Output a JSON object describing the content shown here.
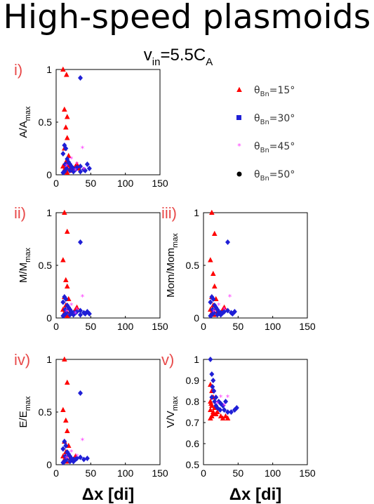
{
  "page": {
    "title": "High-speed plasmoids",
    "condition": {
      "var": "v",
      "var_sub": "in",
      "eq": "=5.5C",
      "const_sub": "A"
    }
  },
  "colors": {
    "theta15": "#ff0000",
    "theta30": "#1f1fd6",
    "theta45": "#ff33ff",
    "theta50": "#000000",
    "panel_label": "#e84a4a"
  },
  "legend": {
    "placement": "right of panel i",
    "items": [
      {
        "key": "theta15",
        "marker": "triangle",
        "sym": "θ",
        "sub": "Bn",
        "rest": "=15°"
      },
      {
        "key": "theta30",
        "marker": "square",
        "sym": "θ",
        "sub": "Bn",
        "rest": "=30°"
      },
      {
        "key": "theta45",
        "marker": "star",
        "sym": "θ",
        "sub": "Bn",
        "rest": "=45°"
      },
      {
        "key": "theta50",
        "marker": "circle",
        "sym": "θ",
        "sub": "Bn",
        "rest": "=50°"
      }
    ]
  },
  "chart_data": [
    {
      "id": "i",
      "label": "i)",
      "type": "scatter",
      "ylabel_main": "A/A",
      "ylabel_sub": "max",
      "xlabel": "",
      "xlim": [
        0,
        150
      ],
      "ylim": [
        0,
        1
      ],
      "xticks": [
        0,
        50,
        100,
        150
      ],
      "yticks": [
        0,
        0.5,
        1
      ],
      "ytick_labels": [
        "0",
        "0.5",
        "1"
      ],
      "series": [
        {
          "key": "theta15",
          "points": [
            [
              10,
              1.0
            ],
            [
              15,
              0.95
            ],
            [
              12,
              0.62
            ],
            [
              16,
              0.55
            ],
            [
              14,
              0.45
            ],
            [
              16,
              0.35
            ],
            [
              12,
              0.25
            ],
            [
              18,
              0.18
            ],
            [
              14,
              0.12
            ],
            [
              10,
              0.08
            ],
            [
              20,
              0.06
            ],
            [
              25,
              0.05
            ],
            [
              12,
              0.05
            ],
            [
              15,
              0.03
            ],
            [
              22,
              0.04
            ],
            [
              30,
              0.1
            ],
            [
              18,
              0.09
            ],
            [
              28,
              0.08
            ],
            [
              33,
              0.06
            ],
            [
              16,
              0.02
            ]
          ]
        },
        {
          "key": "theta30",
          "points": [
            [
              35,
              0.92
            ],
            [
              12,
              0.28
            ],
            [
              14,
              0.25
            ],
            [
              10,
              0.2
            ],
            [
              16,
              0.15
            ],
            [
              18,
              0.12
            ],
            [
              13,
              0.1
            ],
            [
              20,
              0.1
            ],
            [
              22,
              0.08
            ],
            [
              25,
              0.06
            ],
            [
              28,
              0.05
            ],
            [
              30,
              0.07
            ],
            [
              35,
              0.08
            ],
            [
              40,
              0.05
            ],
            [
              45,
              0.1
            ],
            [
              48,
              0.06
            ],
            [
              15,
              0.06
            ],
            [
              20,
              0.04
            ],
            [
              12,
              0.03
            ],
            [
              25,
              0.03
            ],
            [
              10,
              0.02
            ],
            [
              35,
              0.03
            ],
            [
              42,
              0.04
            ]
          ]
        },
        {
          "key": "theta45",
          "points": [
            [
              38,
              0.25
            ],
            [
              22,
              0.15
            ],
            [
              30,
              0.1
            ],
            [
              15,
              0.08
            ],
            [
              28,
              0.04
            ],
            [
              40,
              0.05
            ]
          ]
        }
      ]
    },
    {
      "id": "ii",
      "label": "ii)",
      "type": "scatter",
      "ylabel_main": "M/M",
      "ylabel_sub": "max",
      "xlabel": "",
      "xlim": [
        0,
        150
      ],
      "ylim": [
        0,
        1
      ],
      "xticks": [
        0,
        50,
        100,
        150
      ],
      "yticks": [
        0,
        0.5,
        1
      ],
      "ytick_labels": [
        "0",
        "0.5",
        "1"
      ],
      "series": [
        {
          "key": "theta15",
          "points": [
            [
              12,
              1.0
            ],
            [
              16,
              0.82
            ],
            [
              10,
              0.55
            ],
            [
              14,
              0.36
            ],
            [
              16,
              0.3
            ],
            [
              12,
              0.2
            ],
            [
              18,
              0.18
            ],
            [
              14,
              0.12
            ],
            [
              10,
              0.08
            ],
            [
              20,
              0.06
            ],
            [
              25,
              0.05
            ],
            [
              12,
              0.05
            ],
            [
              15,
              0.03
            ],
            [
              22,
              0.04
            ],
            [
              30,
              0.1
            ],
            [
              18,
              0.09
            ],
            [
              28,
              0.08
            ],
            [
              16,
              0.02
            ]
          ]
        },
        {
          "key": "theta30",
          "points": [
            [
              35,
              0.72
            ],
            [
              12,
              0.2
            ],
            [
              14,
              0.18
            ],
            [
              10,
              0.15
            ],
            [
              16,
              0.12
            ],
            [
              18,
              0.1
            ],
            [
              13,
              0.08
            ],
            [
              20,
              0.08
            ],
            [
              22,
              0.06
            ],
            [
              25,
              0.05
            ],
            [
              28,
              0.05
            ],
            [
              30,
              0.06
            ],
            [
              35,
              0.07
            ],
            [
              40,
              0.05
            ],
            [
              45,
              0.06
            ],
            [
              48,
              0.04
            ],
            [
              15,
              0.05
            ],
            [
              20,
              0.03
            ],
            [
              12,
              0.03
            ],
            [
              25,
              0.03
            ],
            [
              10,
              0.02
            ],
            [
              35,
              0.03
            ],
            [
              42,
              0.04
            ]
          ]
        },
        {
          "key": "theta45",
          "points": [
            [
              38,
              0.2
            ],
            [
              22,
              0.12
            ],
            [
              30,
              0.08
            ],
            [
              15,
              0.06
            ],
            [
              28,
              0.04
            ]
          ]
        }
      ]
    },
    {
      "id": "iii",
      "label": "iii)",
      "type": "scatter",
      "ylabel_main": "Mom/Mom",
      "ylabel_sub": "max",
      "xlabel": "",
      "xlim": [
        0,
        150
      ],
      "ylim": [
        0,
        1
      ],
      "xticks": [
        0,
        50,
        100,
        150
      ],
      "yticks": [
        0,
        0.5,
        1
      ],
      "ytick_labels": [
        "0",
        "0.5",
        "1"
      ],
      "series": [
        {
          "key": "theta15",
          "points": [
            [
              12,
              1.0
            ],
            [
              16,
              0.8
            ],
            [
              10,
              0.55
            ],
            [
              14,
              0.42
            ],
            [
              16,
              0.3
            ],
            [
              12,
              0.2
            ],
            [
              18,
              0.18
            ],
            [
              14,
              0.12
            ],
            [
              10,
              0.08
            ],
            [
              20,
              0.06
            ],
            [
              25,
              0.05
            ],
            [
              12,
              0.05
            ],
            [
              15,
              0.03
            ],
            [
              22,
              0.04
            ],
            [
              30,
              0.1
            ],
            [
              18,
              0.09
            ],
            [
              28,
              0.08
            ]
          ]
        },
        {
          "key": "theta30",
          "points": [
            [
              35,
              0.72
            ],
            [
              12,
              0.2
            ],
            [
              14,
              0.18
            ],
            [
              10,
              0.15
            ],
            [
              16,
              0.12
            ],
            [
              18,
              0.1
            ],
            [
              13,
              0.08
            ],
            [
              20,
              0.08
            ],
            [
              22,
              0.06
            ],
            [
              25,
              0.05
            ],
            [
              28,
              0.05
            ],
            [
              30,
              0.06
            ],
            [
              35,
              0.07
            ],
            [
              40,
              0.05
            ],
            [
              45,
              0.06
            ],
            [
              15,
              0.05
            ],
            [
              20,
              0.03
            ],
            [
              12,
              0.03
            ],
            [
              25,
              0.03
            ],
            [
              10,
              0.02
            ],
            [
              42,
              0.04
            ]
          ]
        },
        {
          "key": "theta45",
          "points": [
            [
              38,
              0.2
            ],
            [
              22,
              0.12
            ],
            [
              30,
              0.08
            ],
            [
              15,
              0.06
            ]
          ]
        }
      ]
    },
    {
      "id": "iv",
      "label": "iv)",
      "type": "scatter",
      "ylabel_main": "E/E",
      "ylabel_sub": "max",
      "xlabel": "Δx [di]",
      "xlim": [
        0,
        150
      ],
      "ylim": [
        0,
        1
      ],
      "xticks": [
        0,
        50,
        100,
        150
      ],
      "yticks": [
        0,
        0.5,
        1
      ],
      "ytick_labels": [
        "0",
        "0.5",
        "1"
      ],
      "series": [
        {
          "key": "theta15",
          "points": [
            [
              12,
              1.0
            ],
            [
              16,
              0.78
            ],
            [
              10,
              0.52
            ],
            [
              14,
              0.42
            ],
            [
              16,
              0.32
            ],
            [
              12,
              0.22
            ],
            [
              18,
              0.18
            ],
            [
              14,
              0.12
            ],
            [
              10,
              0.08
            ],
            [
              20,
              0.06
            ],
            [
              25,
              0.05
            ],
            [
              12,
              0.05
            ],
            [
              15,
              0.03
            ],
            [
              22,
              0.04
            ],
            [
              18,
              0.09
            ],
            [
              28,
              0.08
            ]
          ]
        },
        {
          "key": "theta30",
          "points": [
            [
              35,
              0.68
            ],
            [
              12,
              0.22
            ],
            [
              14,
              0.18
            ],
            [
              10,
              0.15
            ],
            [
              16,
              0.12
            ],
            [
              18,
              0.1
            ],
            [
              13,
              0.08
            ],
            [
              20,
              0.08
            ],
            [
              22,
              0.06
            ],
            [
              25,
              0.05
            ],
            [
              28,
              0.05
            ],
            [
              30,
              0.06
            ],
            [
              35,
              0.07
            ],
            [
              40,
              0.05
            ],
            [
              45,
              0.06
            ],
            [
              15,
              0.05
            ],
            [
              20,
              0.03
            ],
            [
              12,
              0.03
            ],
            [
              25,
              0.03
            ],
            [
              10,
              0.02
            ]
          ]
        },
        {
          "key": "theta45",
          "points": [
            [
              38,
              0.23
            ],
            [
              22,
              0.12
            ],
            [
              30,
              0.08
            ],
            [
              15,
              0.06
            ]
          ]
        }
      ]
    },
    {
      "id": "v",
      "label": "v)",
      "type": "scatter",
      "ylabel_main": "V/V",
      "ylabel_sub": "max",
      "xlabel": "Δx [di]",
      "xlim": [
        0,
        150
      ],
      "ylim": [
        0.5,
        1
      ],
      "xticks": [
        0,
        50,
        100,
        150
      ],
      "yticks": [
        0.5,
        0.6,
        0.7,
        0.8,
        0.9,
        1
      ],
      "ytick_labels": [
        "0.5",
        "0.6",
        "0.7",
        "0.8",
        "0.9",
        "1"
      ],
      "series": [
        {
          "key": "theta15",
          "points": [
            [
              10,
              0.88
            ],
            [
              12,
              0.85
            ],
            [
              14,
              0.82
            ],
            [
              10,
              0.8
            ],
            [
              12,
              0.78
            ],
            [
              16,
              0.77
            ],
            [
              10,
              0.76
            ],
            [
              14,
              0.75
            ],
            [
              18,
              0.74
            ],
            [
              12,
              0.73
            ],
            [
              10,
              0.72
            ],
            [
              20,
              0.75
            ],
            [
              25,
              0.73
            ],
            [
              28,
              0.72
            ],
            [
              32,
              0.73
            ],
            [
              35,
              0.72
            ],
            [
              15,
              0.74
            ],
            [
              11,
              0.79
            ]
          ]
        },
        {
          "key": "theta30",
          "points": [
            [
              10,
              1.0
            ],
            [
              12,
              0.93
            ],
            [
              14,
              0.9
            ],
            [
              13,
              0.87
            ],
            [
              15,
              0.85
            ],
            [
              12,
              0.82
            ],
            [
              16,
              0.8
            ],
            [
              18,
              0.78
            ],
            [
              20,
              0.77
            ],
            [
              22,
              0.8
            ],
            [
              25,
              0.79
            ],
            [
              28,
              0.78
            ],
            [
              30,
              0.76
            ],
            [
              35,
              0.75
            ],
            [
              40,
              0.75
            ],
            [
              45,
              0.76
            ],
            [
              48,
              0.77
            ],
            [
              18,
              0.82
            ],
            [
              24,
              0.76
            ],
            [
              32,
              0.8
            ]
          ]
        },
        {
          "key": "theta45",
          "points": [
            [
              25,
              0.82
            ],
            [
              35,
              0.82
            ],
            [
              30,
              0.78
            ],
            [
              20,
              0.79
            ]
          ]
        }
      ]
    }
  ]
}
